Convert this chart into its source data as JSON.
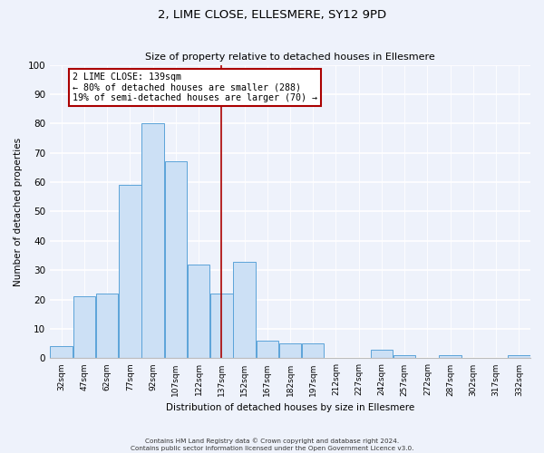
{
  "title": "2, LIME CLOSE, ELLESMERE, SY12 9PD",
  "subtitle": "Size of property relative to detached houses in Ellesmere",
  "xlabel": "Distribution of detached houses by size in Ellesmere",
  "ylabel": "Number of detached properties",
  "bar_labels": [
    "32sqm",
    "47sqm",
    "62sqm",
    "77sqm",
    "92sqm",
    "107sqm",
    "122sqm",
    "137sqm",
    "152sqm",
    "167sqm",
    "182sqm",
    "197sqm",
    "212sqm",
    "227sqm",
    "242sqm",
    "257sqm",
    "272sqm",
    "287sqm",
    "302sqm",
    "317sqm",
    "332sqm"
  ],
  "bar_values": [
    4,
    21,
    22,
    59,
    80,
    67,
    32,
    22,
    33,
    6,
    5,
    5,
    0,
    0,
    3,
    1,
    0,
    1,
    0,
    0,
    1
  ],
  "bar_color": "#cce0f5",
  "bar_edge_color": "#5ba3d9",
  "vline_index": 7,
  "vline_color": "#aa0000",
  "annotation_line1": "2 LIME CLOSE: 139sqm",
  "annotation_line2": "← 80% of detached houses are smaller (288)",
  "annotation_line3": "19% of semi-detached houses are larger (70) →",
  "annotation_box_facecolor": "#ffffff",
  "annotation_box_edgecolor": "#aa0000",
  "ylim": [
    0,
    100
  ],
  "yticks": [
    0,
    10,
    20,
    30,
    40,
    50,
    60,
    70,
    80,
    90,
    100
  ],
  "background_color": "#eef2fb",
  "grid_color": "#ffffff",
  "footer1": "Contains HM Land Registry data © Crown copyright and database right 2024.",
  "footer2": "Contains public sector information licensed under the Open Government Licence v3.0."
}
